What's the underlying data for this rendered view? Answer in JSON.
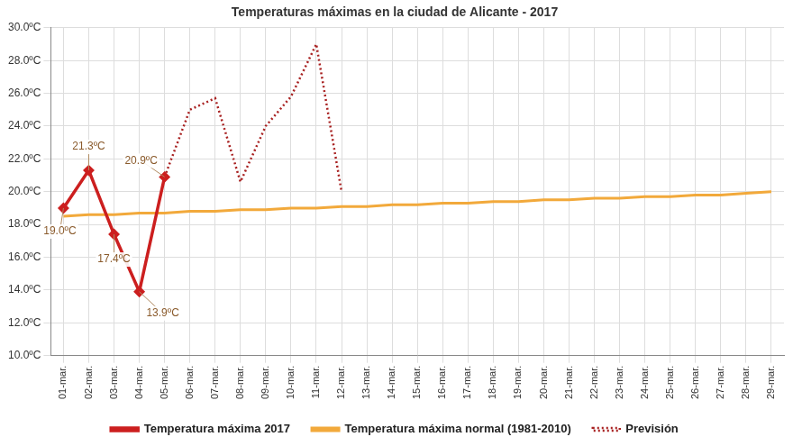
{
  "chart_data": {
    "type": "line",
    "title": "Temperaturas máximas en la ciudad de Alicante - 2017",
    "categories": [
      "01-mar.",
      "02-mar.",
      "03-mar.",
      "04-mar.",
      "05-mar.",
      "06-mar.",
      "07-mar.",
      "08-mar.",
      "09-mar.",
      "10-mar.",
      "11-mar.",
      "12-mar.",
      "13-mar.",
      "14-mar.",
      "15-mar.",
      "16-mar.",
      "17-mar.",
      "18-mar.",
      "19-mar.",
      "20-mar.",
      "21-mar.",
      "22-mar.",
      "23-mar.",
      "24-mar.",
      "25-mar.",
      "26-mar.",
      "27-mar.",
      "28-mar.",
      "29-mar."
    ],
    "series": [
      {
        "name": "Temperatura máxima 2017",
        "color": "#cc1f1f",
        "marker": "diamond",
        "line_style": "solid",
        "data_labels": true,
        "values": [
          19.0,
          21.3,
          17.4,
          13.9,
          20.9,
          null,
          null,
          null,
          null,
          null,
          null,
          null,
          null,
          null,
          null,
          null,
          null,
          null,
          null,
          null,
          null,
          null,
          null,
          null,
          null,
          null,
          null,
          null,
          null
        ],
        "value_labels": [
          "19.0ºC",
          "21.3ºC",
          "17.4ºC",
          "13.9ºC",
          "20.9ºC",
          null,
          null,
          null,
          null,
          null,
          null,
          null,
          null,
          null,
          null,
          null,
          null,
          null,
          null,
          null,
          null,
          null,
          null,
          null,
          null,
          null,
          null,
          null,
          null
        ]
      },
      {
        "name": "Temperatura máxima normal (1981-2010)",
        "color": "#f2a93b",
        "marker": "none",
        "line_style": "solid",
        "values": [
          18.5,
          18.6,
          18.6,
          18.7,
          18.7,
          18.8,
          18.8,
          18.9,
          18.9,
          19.0,
          19.0,
          19.1,
          19.1,
          19.2,
          19.2,
          19.3,
          19.3,
          19.4,
          19.4,
          19.5,
          19.5,
          19.6,
          19.6,
          19.7,
          19.7,
          19.8,
          19.8,
          19.9,
          20.0
        ]
      },
      {
        "name": "Previsión",
        "color": "#a82020",
        "marker": "none",
        "line_style": "dotted",
        "values": [
          null,
          null,
          null,
          null,
          20.9,
          25.0,
          25.7,
          20.6,
          24.0,
          25.8,
          29.0,
          20.0,
          null,
          null,
          null,
          null,
          null,
          null,
          null,
          null,
          null,
          null,
          null,
          null,
          null,
          null,
          null,
          null,
          null
        ]
      }
    ],
    "ylim": [
      10,
      30
    ],
    "yticks": [
      {
        "value": 10,
        "label": "10.0ºC"
      },
      {
        "value": 12,
        "label": "12.0ºC"
      },
      {
        "value": 14,
        "label": "14.0ºC"
      },
      {
        "value": 16,
        "label": "16.0ºC"
      },
      {
        "value": 18,
        "label": "18.0ºC"
      },
      {
        "value": 20,
        "label": "20.0ºC"
      },
      {
        "value": 22,
        "label": "22.0ºC"
      },
      {
        "value": 24,
        "label": "24.0ºC"
      },
      {
        "value": 26,
        "label": "26.0ºC"
      },
      {
        "value": 28,
        "label": "28.0ºC"
      },
      {
        "value": 30,
        "label": "30.0ºC"
      }
    ],
    "grid": true,
    "legend": "bottom"
  }
}
